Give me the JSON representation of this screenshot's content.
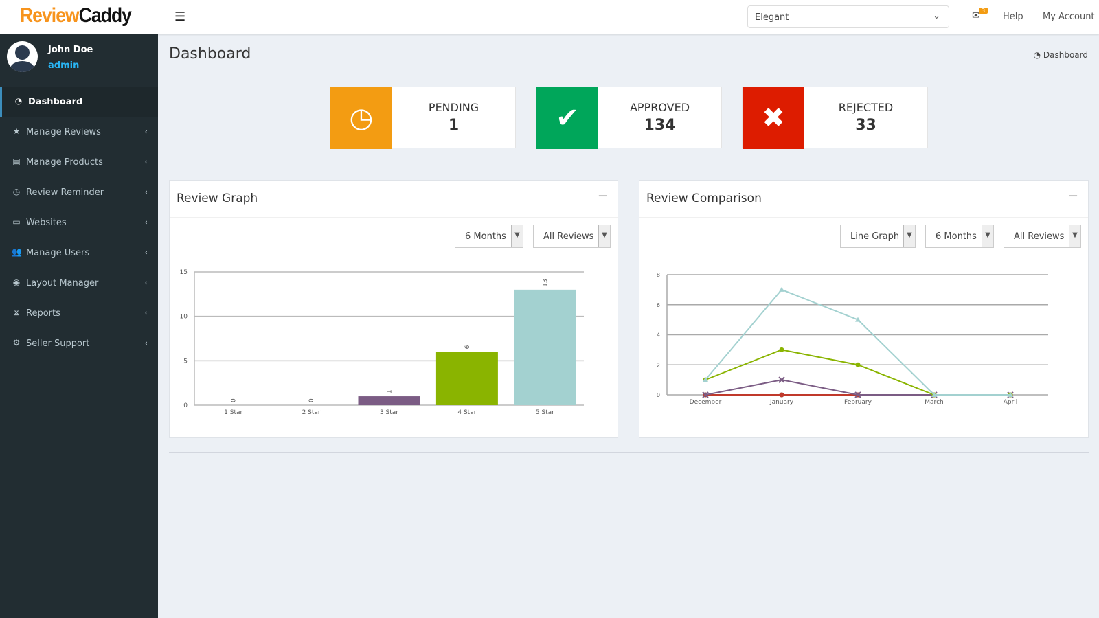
{
  "header": {
    "logo_part1": "Review",
    "logo_part2": "Caddy",
    "theme": "Elegant",
    "mail_count": "3",
    "help": "Help",
    "account": "My Account"
  },
  "user": {
    "name": "John Doe",
    "role": "admin"
  },
  "sidebar": {
    "items": [
      {
        "label": "Dashboard",
        "icon": "dashboard-icon",
        "active": true
      },
      {
        "label": "Manage Reviews",
        "icon": "star-icon"
      },
      {
        "label": "Manage Products",
        "icon": "file-icon"
      },
      {
        "label": "Review Reminder",
        "icon": "clock-icon"
      },
      {
        "label": "Websites",
        "icon": "laptop-icon"
      },
      {
        "label": "Manage Users",
        "icon": "users-icon"
      },
      {
        "label": "Layout Manager",
        "icon": "eye-icon"
      },
      {
        "label": "Reports",
        "icon": "report-icon"
      },
      {
        "label": "Seller Support",
        "icon": "gear-icon"
      }
    ]
  },
  "page": {
    "title": "Dashboard",
    "breadcrumb": "Dashboard"
  },
  "stats": [
    {
      "label": "PENDING",
      "value": "1",
      "color": "#f39c12",
      "icon": "clock-icon"
    },
    {
      "label": "APPROVED",
      "value": "134",
      "color": "#00a65a",
      "icon": "check-icon"
    },
    {
      "label": "REJECTED",
      "value": "33",
      "color": "#dd1c00",
      "icon": "times-icon"
    }
  ],
  "review_graph": {
    "title": "Review Graph",
    "period": "6 Months",
    "filter": "All Reviews"
  },
  "review_comparison": {
    "title": "Review Comparison",
    "chart_type": "Line Graph",
    "period": "6 Months",
    "filter": "All Reviews"
  },
  "chart_data": [
    {
      "type": "bar",
      "categories": [
        "1 Star",
        "2 Star",
        "3 Star",
        "4 Star",
        "5 Star"
      ],
      "values": [
        0,
        0,
        1,
        6,
        13
      ],
      "colors": [
        "#7b5c84",
        "#7b5c84",
        "#7b5c84",
        "#8ab400",
        "#a3d1d0"
      ],
      "ylim": [
        0,
        15
      ],
      "yticks": [
        0,
        5,
        10,
        15
      ],
      "grid": true
    },
    {
      "type": "line",
      "categories": [
        "December",
        "January",
        "February",
        "March",
        "April"
      ],
      "ylim": [
        0,
        8
      ],
      "yticks": [
        0,
        2,
        4,
        6,
        8
      ],
      "grid": true,
      "series": [
        {
          "values": [
            1,
            7,
            5,
            0,
            0
          ],
          "color": "#a3d1d0",
          "marker": "triangle"
        },
        {
          "values": [
            1,
            3,
            2,
            0,
            0
          ],
          "color": "#8ab400",
          "marker": "circle"
        },
        {
          "values": [
            0,
            1,
            0,
            0,
            0
          ],
          "color": "#7b5c84",
          "marker": "x"
        },
        {
          "values": [
            0,
            0,
            0,
            0,
            0
          ],
          "color": "#c0392b",
          "marker": "circle"
        },
        {
          "values": [
            0,
            0,
            0,
            0,
            0
          ],
          "color": "#3aa8b0",
          "marker": "circle"
        }
      ]
    }
  ]
}
